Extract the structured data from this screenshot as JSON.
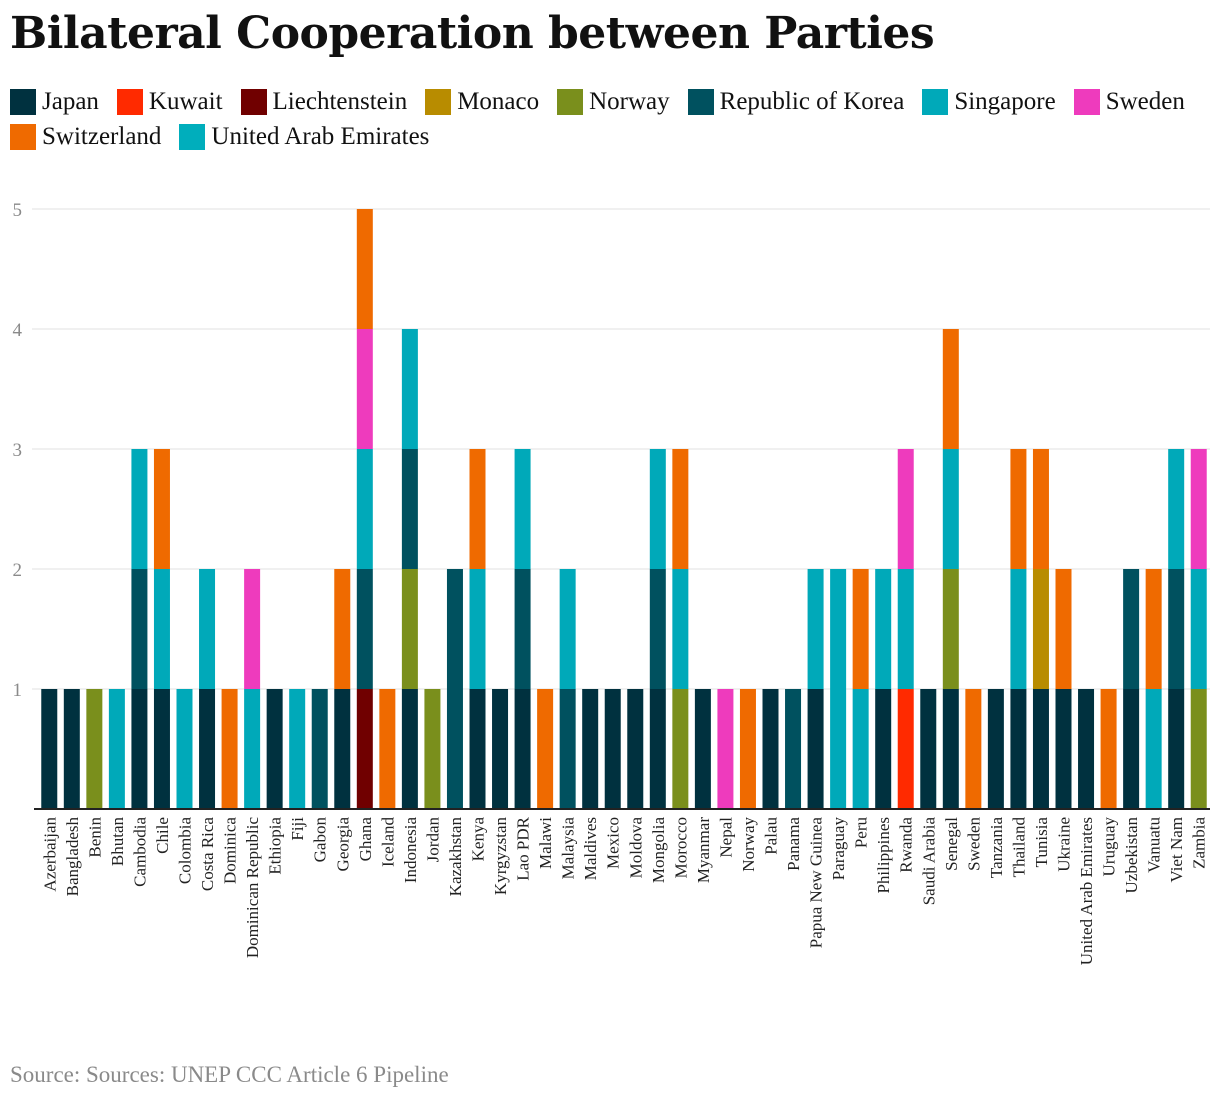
{
  "title": "Bilateral Cooperation between Parties",
  "source": "Source: Sources: UNEP CCC Article 6 Pipeline",
  "colors": {
    "Japan": "#00313f",
    "Kuwait": "#ff2a00",
    "Liechtenstein": "#700000",
    "Monaco": "#b88c00",
    "Norway": "#7a8f1c",
    "Republic of Korea": "#00515f",
    "Singapore": "#00a9b9",
    "Sweden": "#ee3bbd",
    "Switzerland": "#ef6a00",
    "United Arab Emirates": "#00aebc"
  },
  "chart_data": {
    "type": "bar",
    "stacked": true,
    "title": "Bilateral Cooperation between Parties",
    "xlabel": "",
    "ylabel": "",
    "ylim": [
      0,
      5
    ],
    "yticks": [
      1,
      2,
      3,
      4,
      5
    ],
    "grid": true,
    "legend_position": "top-left",
    "categories": [
      "Azerbaijan",
      "Bangladesh",
      "Benin",
      "Bhutan",
      "Cambodia",
      "Chile",
      "Colombia",
      "Costa Rica",
      "Dominica",
      "Dominican Republic",
      "Ethiopia",
      "Fiji",
      "Gabon",
      "Georgia",
      "Ghana",
      "Iceland",
      "Indonesia",
      "Jordan",
      "Kazakhstan",
      "Kenya",
      "Kyrgyzstan",
      "Lao PDR",
      "Malawi",
      "Malaysia",
      "Maldives",
      "Mexico",
      "Moldova",
      "Mongolia",
      "Morocco",
      "Myanmar",
      "Nepal",
      "Norway",
      "Palau",
      "Panama",
      "Papua New Guinea",
      "Paraguay",
      "Peru",
      "Philippines",
      "Rwanda",
      "Saudi Arabia",
      "Senegal",
      "Sweden",
      "Tanzania",
      "Thailand",
      "Tunisia",
      "Ukraine",
      "United Arab Emirates",
      "Uruguay",
      "Uzbekistan",
      "Vanuatu",
      "Viet Nam",
      "Zambia"
    ],
    "series": [
      {
        "name": "Japan",
        "values": [
          1,
          1,
          0,
          0,
          1,
          1,
          0,
          1,
          0,
          0,
          1,
          0,
          0,
          1,
          0,
          0,
          1,
          0,
          0,
          1,
          1,
          1,
          0,
          0,
          1,
          1,
          1,
          1,
          0,
          1,
          0,
          0,
          1,
          0,
          1,
          0,
          0,
          1,
          0,
          1,
          1,
          0,
          1,
          1,
          1,
          1,
          1,
          0,
          1,
          0,
          1,
          0
        ]
      },
      {
        "name": "Kuwait",
        "values": [
          0,
          0,
          0,
          0,
          0,
          0,
          0,
          0,
          0,
          0,
          0,
          0,
          0,
          0,
          0,
          0,
          0,
          0,
          0,
          0,
          0,
          0,
          0,
          0,
          0,
          0,
          0,
          0,
          0,
          0,
          0,
          0,
          0,
          0,
          0,
          0,
          0,
          0,
          1,
          0,
          0,
          0,
          0,
          0,
          0,
          0,
          0,
          0,
          0,
          0,
          0,
          0
        ]
      },
      {
        "name": "Liechtenstein",
        "values": [
          0,
          0,
          0,
          0,
          0,
          0,
          0,
          0,
          0,
          0,
          0,
          0,
          0,
          0,
          1,
          0,
          0,
          0,
          0,
          0,
          0,
          0,
          0,
          0,
          0,
          0,
          0,
          0,
          0,
          0,
          0,
          0,
          0,
          0,
          0,
          0,
          0,
          0,
          0,
          0,
          0,
          0,
          0,
          0,
          0,
          0,
          0,
          0,
          0,
          0,
          0,
          0
        ]
      },
      {
        "name": "Monaco",
        "values": [
          0,
          0,
          0,
          0,
          0,
          0,
          0,
          0,
          0,
          0,
          0,
          0,
          0,
          0,
          0,
          0,
          0,
          0,
          0,
          0,
          0,
          0,
          0,
          0,
          0,
          0,
          0,
          0,
          0,
          0,
          0,
          0,
          0,
          0,
          0,
          0,
          0,
          0,
          0,
          0,
          0,
          0,
          0,
          0,
          1,
          0,
          0,
          0,
          0,
          0,
          0,
          0
        ]
      },
      {
        "name": "Norway",
        "values": [
          0,
          0,
          1,
          0,
          0,
          0,
          0,
          0,
          0,
          0,
          0,
          0,
          0,
          0,
          0,
          0,
          1,
          1,
          0,
          0,
          0,
          0,
          0,
          0,
          0,
          0,
          0,
          0,
          1,
          0,
          0,
          0,
          0,
          0,
          0,
          0,
          0,
          0,
          0,
          0,
          1,
          0,
          0,
          0,
          0,
          0,
          0,
          0,
          0,
          0,
          0,
          1
        ]
      },
      {
        "name": "Republic of Korea",
        "values": [
          0,
          0,
          0,
          0,
          1,
          0,
          0,
          0,
          0,
          0,
          0,
          0,
          1,
          0,
          1,
          0,
          1,
          0,
          2,
          0,
          0,
          1,
          0,
          1,
          0,
          0,
          0,
          1,
          0,
          0,
          0,
          0,
          0,
          1,
          0,
          0,
          0,
          0,
          0,
          0,
          0,
          0,
          0,
          0,
          0,
          0,
          0,
          0,
          1,
          0,
          1,
          0
        ]
      },
      {
        "name": "Singapore",
        "values": [
          0,
          0,
          0,
          1,
          1,
          1,
          1,
          1,
          0,
          1,
          0,
          1,
          0,
          0,
          1,
          0,
          1,
          0,
          0,
          1,
          0,
          1,
          0,
          1,
          0,
          0,
          0,
          1,
          1,
          0,
          0,
          0,
          0,
          0,
          1,
          2,
          1,
          1,
          1,
          0,
          1,
          0,
          0,
          1,
          0,
          0,
          0,
          0,
          0,
          1,
          1,
          1
        ]
      },
      {
        "name": "Sweden",
        "values": [
          0,
          0,
          0,
          0,
          0,
          0,
          0,
          0,
          0,
          1,
          0,
          0,
          0,
          0,
          1,
          0,
          0,
          0,
          0,
          0,
          0,
          0,
          0,
          0,
          0,
          0,
          0,
          0,
          0,
          0,
          1,
          0,
          0,
          0,
          0,
          0,
          0,
          0,
          1,
          0,
          0,
          0,
          0,
          0,
          0,
          0,
          0,
          0,
          0,
          0,
          0,
          1
        ]
      },
      {
        "name": "Switzerland",
        "values": [
          0,
          0,
          0,
          0,
          0,
          1,
          0,
          0,
          1,
          0,
          0,
          0,
          0,
          1,
          1,
          1,
          0,
          0,
          0,
          1,
          0,
          0,
          1,
          0,
          0,
          0,
          0,
          0,
          1,
          0,
          0,
          1,
          0,
          0,
          0,
          0,
          1,
          0,
          0,
          0,
          1,
          1,
          0,
          1,
          1,
          1,
          0,
          1,
          0,
          1,
          0,
          0
        ]
      },
      {
        "name": "United Arab Emirates",
        "values": [
          0,
          0,
          0,
          0,
          0,
          0,
          0,
          0,
          0,
          0,
          0,
          0,
          0,
          0,
          0,
          0,
          0,
          0,
          0,
          0,
          0,
          0,
          0,
          0,
          0,
          0,
          0,
          0,
          0,
          0,
          0,
          0,
          0,
          0,
          0,
          0,
          0,
          0,
          0,
          0,
          0,
          0,
          0,
          0,
          0,
          0,
          0,
          0,
          0,
          0,
          0,
          0
        ]
      }
    ]
  }
}
